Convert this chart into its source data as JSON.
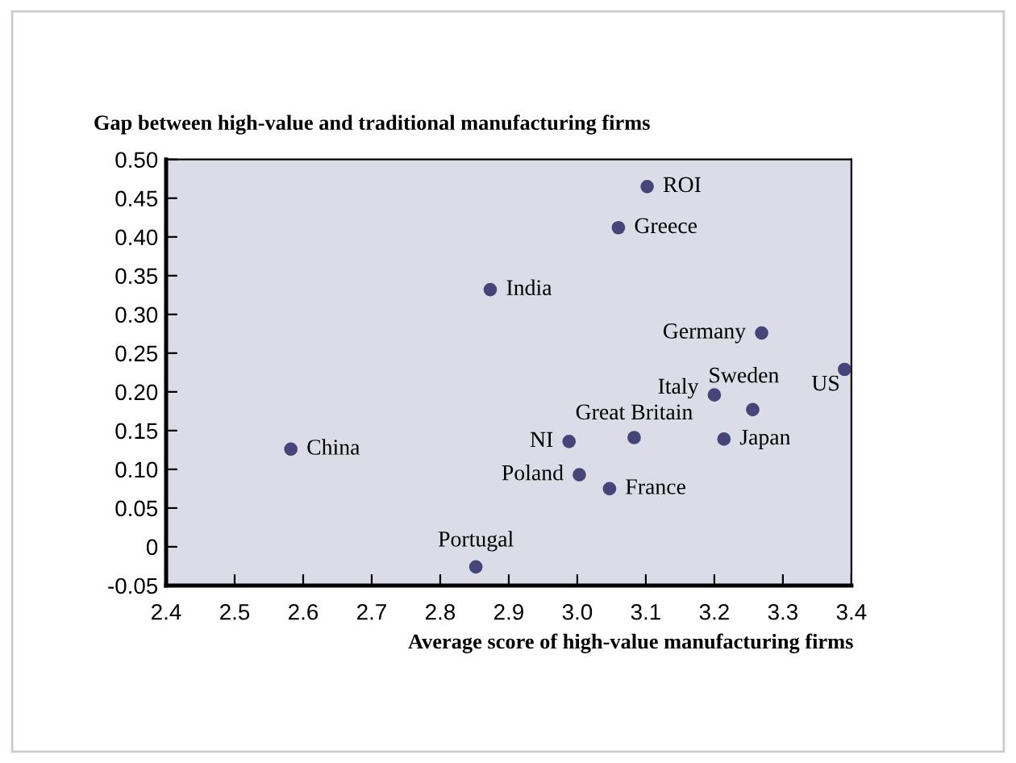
{
  "chart_data": {
    "type": "scatter",
    "ylabel": "Gap between high-value and traditional manufacturing firms",
    "xlabel": "Average score of high-value manufacturing firms",
    "series": [
      {
        "color": "#46457a",
        "x": [
          3.102,
          3.06,
          2.873,
          3.269,
          3.39,
          3.2,
          3.256,
          3.083,
          3.214,
          2.988,
          2.582,
          3.003,
          3.047,
          2.852
        ],
        "values": [
          0.465,
          0.412,
          0.332,
          0.276,
          0.229,
          0.196,
          0.177,
          0.141,
          0.139,
          0.136,
          0.126,
          0.093,
          0.075,
          -0.026
        ]
      }
    ],
    "annotations": [
      {
        "text": "ROI",
        "x": 3.102,
        "y": 0.465
      },
      {
        "text": "Greece",
        "x": 3.06,
        "y": 0.412
      },
      {
        "text": "India",
        "x": 2.873,
        "y": 0.332
      },
      {
        "text": "Germany",
        "x": 3.269,
        "y": 0.276
      },
      {
        "text": "US",
        "x": 3.39,
        "y": 0.229
      },
      {
        "text": "Italy",
        "x": 3.2,
        "y": 0.196
      },
      {
        "text": "Sweden",
        "x": 3.256,
        "y": 0.177
      },
      {
        "text": "Great Britain",
        "x": 3.083,
        "y": 0.141
      },
      {
        "text": "Japan",
        "x": 3.214,
        "y": 0.139
      },
      {
        "text": "NI",
        "x": 2.988,
        "y": 0.136
      },
      {
        "text": "China",
        "x": 2.582,
        "y": 0.126
      },
      {
        "text": "Poland",
        "x": 3.003,
        "y": 0.093
      },
      {
        "text": "France",
        "x": 3.047,
        "y": 0.075
      },
      {
        "text": "Portugal",
        "x": 2.852,
        "y": -0.026
      }
    ],
    "marker": "circle",
    "xlim": [
      2.4,
      3.4
    ],
    "ylim": [
      -0.05,
      0.5
    ],
    "xticks": [
      2.4,
      2.5,
      2.6,
      2.7,
      2.8,
      2.9,
      {
        "value": 3.0,
        "label": "3.0"
      },
      3.1,
      3.2,
      3.3,
      3.4
    ],
    "yticks": [
      {
        "value": 0.5,
        "label": "0.50"
      },
      0.45,
      {
        "value": 0.4,
        "label": "0.40"
      },
      0.35,
      {
        "value": 0.3,
        "label": "0.30"
      },
      0.25,
      {
        "value": 0.2,
        "label": "0.20"
      },
      0.15,
      {
        "value": 0.1,
        "label": "0.10"
      },
      0.05,
      0,
      -0.05
    ],
    "grid": false,
    "legend": false
  }
}
